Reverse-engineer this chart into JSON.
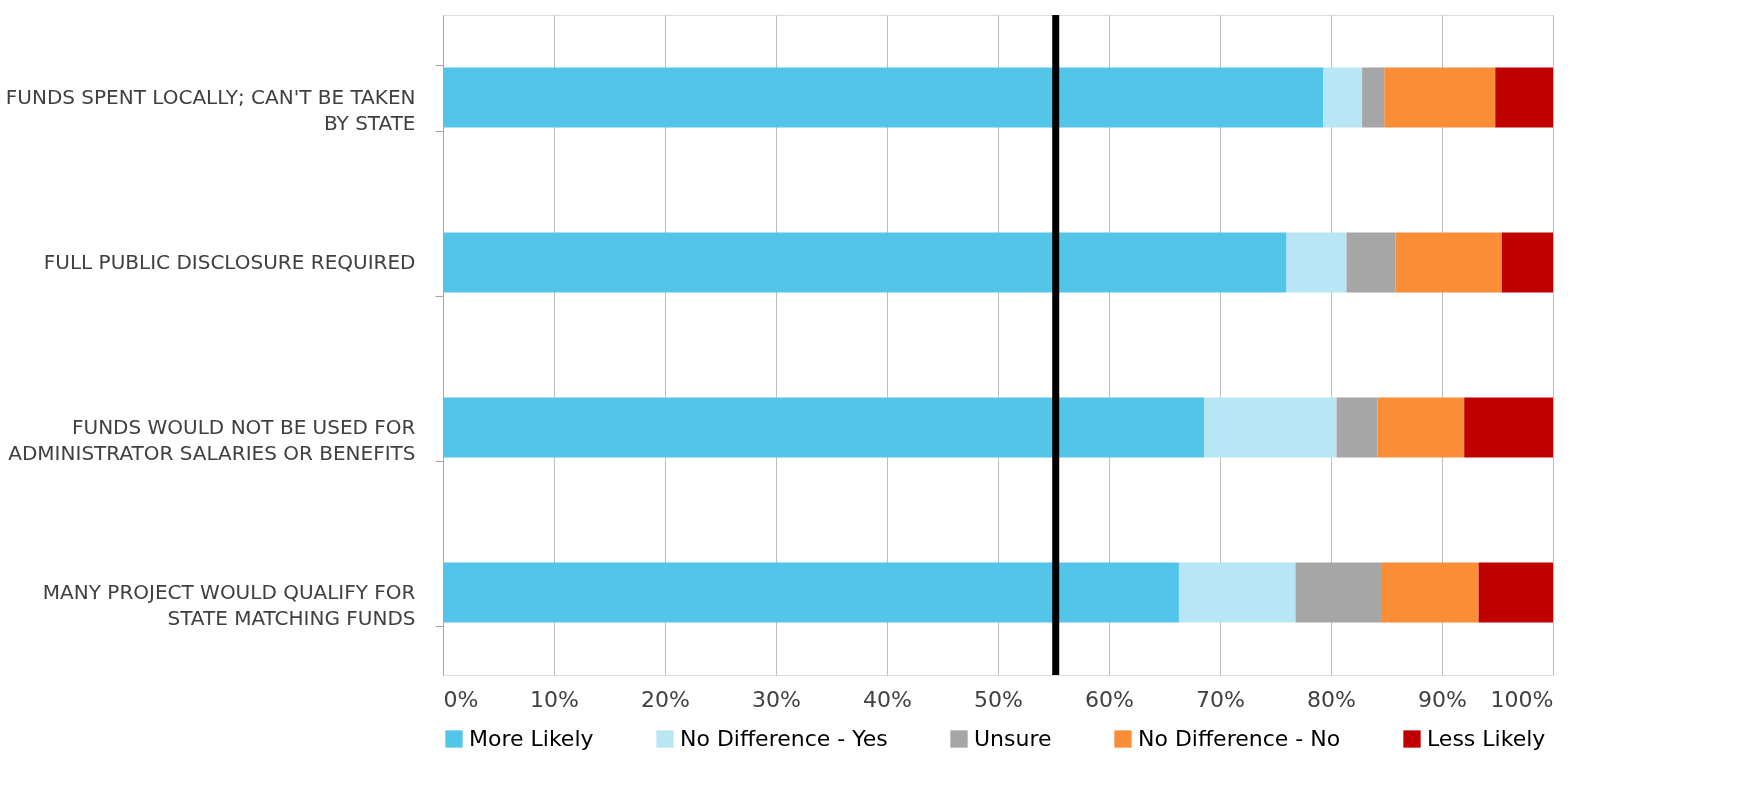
{
  "chart_data": {
    "type": "bar",
    "orientation": "horizontal",
    "stacked": true,
    "categories": [
      "FUNDS SPENT LOCALLY; CAN'T BE TAKEN BY STATE",
      "FULL PUBLIC DISCLOSURE REQUIRED",
      "FUNDS WOULD NOT BE USED FOR ADMINISTRATOR SALARIES OR BENEFITS",
      "MANY PROJECT WOULD QUALIFY FOR STATE MATCHING FUNDS"
    ],
    "series": [
      {
        "name": "More Likely",
        "color": "#53c5e8",
        "values": [
          79.3,
          76.0,
          68.6,
          66.3
        ]
      },
      {
        "name": "No Difference - Yes",
        "color": "#b9e6f5",
        "values": [
          3.5,
          5.4,
          11.9,
          10.5
        ]
      },
      {
        "name": "Unsure",
        "color": "#a6a6a6",
        "values": [
          2.0,
          4.4,
          3.7,
          7.7
        ]
      },
      {
        "name": "No Difference - No",
        "color": "#f98e37",
        "values": [
          10.0,
          9.6,
          7.8,
          8.8
        ]
      },
      {
        "name": "Less Likely",
        "color": "#c00000",
        "values": [
          5.2,
          4.6,
          8.0,
          6.7
        ]
      }
    ],
    "xlim": [
      0,
      100
    ],
    "xticks": [
      {
        "value": 0,
        "label": "0%"
      },
      {
        "value": 10,
        "label": "10%"
      },
      {
        "value": 20,
        "label": "20%"
      },
      {
        "value": 30,
        "label": "30%"
      },
      {
        "value": 40,
        "label": "40%"
      },
      {
        "value": 50,
        "label": "50%"
      },
      {
        "value": 60,
        "label": "60%"
      },
      {
        "value": 70,
        "label": "70%"
      },
      {
        "value": 80,
        "label": "80%"
      },
      {
        "value": 90,
        "label": "90%"
      },
      {
        "value": 100,
        "label": "100%"
      }
    ],
    "ref_lines": [
      {
        "axis": "x",
        "value": 55.2,
        "color": "#000000"
      }
    ],
    "grid": "x",
    "legend": "bottom"
  }
}
